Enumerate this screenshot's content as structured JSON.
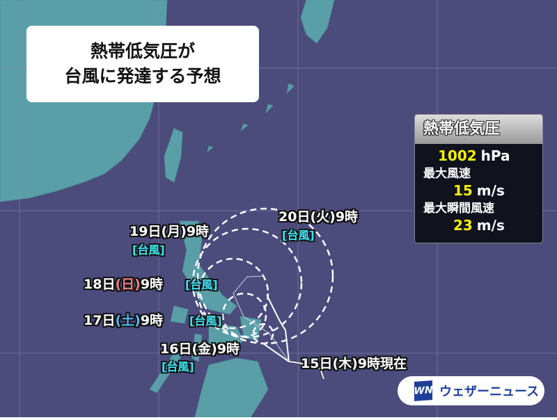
{
  "title": {
    "line1": "熱帯低気圧が",
    "line2": "台風に発達する予想"
  },
  "info_box": {
    "header": "熱帯低気圧",
    "pressure_value": "1002",
    "pressure_unit": "hPa",
    "max_wind_label": "最大風速",
    "max_wind_value": "15",
    "max_wind_unit": "m/s",
    "max_gust_label": "最大瞬間風速",
    "max_gust_value": "23",
    "max_gust_unit": "m/s"
  },
  "forecast_points": [
    {
      "day": "15日",
      "dow": "(木)",
      "time": "9時現在",
      "status": ""
    },
    {
      "day": "16日",
      "dow": "(金)",
      "time": "9時",
      "status": "[台風]"
    },
    {
      "day": "17日",
      "dow": "(土)",
      "time": "9時",
      "status": "[台風]"
    },
    {
      "day": "18日",
      "dow": "(日)",
      "time": "9時",
      "status": "[台風]"
    },
    {
      "day": "19日",
      "dow": "(月)",
      "time": "9時",
      "status": "[台風]"
    },
    {
      "day": "20日",
      "dow": "(火)",
      "time": "9時",
      "status": "[台風]"
    }
  ],
  "logo": {
    "mark": "WN",
    "text": "ウェザーニュース"
  },
  "colors": {
    "ocean": "#4b4b7c",
    "land": "#5a9fa8",
    "status_tag": "#3ee6f0",
    "sunday": "#f08080",
    "saturday": "#55b8f0",
    "value": "#f5f000"
  }
}
